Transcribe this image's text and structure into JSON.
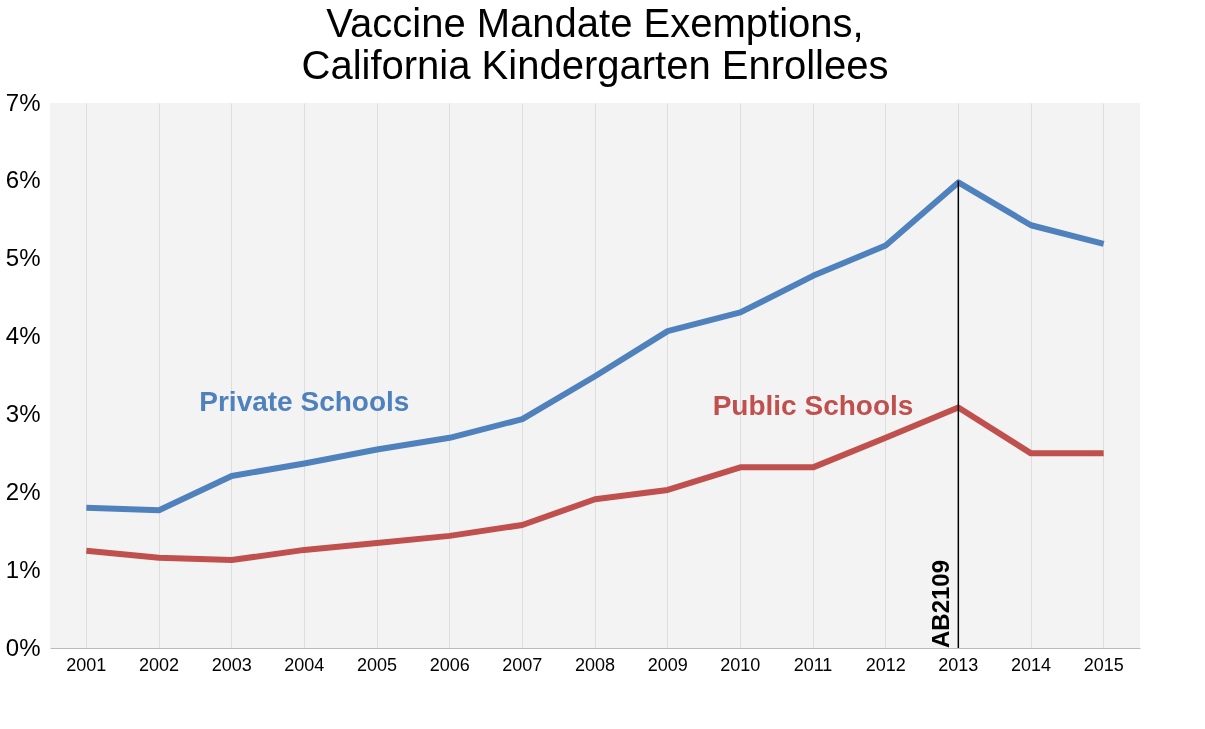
{
  "chart_data": {
    "type": "line",
    "title": "Vaccine Mandate Exemptions, California Kindergarten Enrollees",
    "categories": [
      "2001",
      "2002",
      "2003",
      "2004",
      "2005",
      "2006",
      "2007",
      "2008",
      "2009",
      "2010",
      "2011",
      "2012",
      "2013",
      "2014",
      "2015"
    ],
    "series": [
      {
        "name": "Private Schools",
        "color": "#4f81bd",
        "values": [
          1.8,
          1.77,
          2.21,
          2.37,
          2.55,
          2.7,
          2.94,
          3.49,
          4.07,
          4.31,
          4.78,
          5.17,
          5.98,
          5.43,
          5.19
        ]
      },
      {
        "name": "Public Schools",
        "color": "#c0504d",
        "values": [
          1.25,
          1.16,
          1.13,
          1.26,
          1.35,
          1.44,
          1.58,
          1.91,
          2.03,
          2.32,
          2.32,
          2.7,
          3.09,
          2.5,
          2.5
        ]
      }
    ],
    "ylim": [
      0,
      7
    ],
    "yticks": [
      {
        "value": 0,
        "label": "0%"
      },
      {
        "value": 1,
        "label": "1%"
      },
      {
        "value": 2,
        "label": "2%"
      },
      {
        "value": 3,
        "label": "3%"
      },
      {
        "value": 4,
        "label": "4%"
      },
      {
        "value": 5,
        "label": "5%"
      },
      {
        "value": 6,
        "label": "6%"
      },
      {
        "value": 7,
        "label": "7%"
      }
    ],
    "ref_lines": [
      {
        "axis": "x",
        "value": "2013",
        "label": "AB2109",
        "color": "#000000"
      }
    ],
    "grid": "x",
    "marker": "none",
    "line_style": "solid"
  }
}
